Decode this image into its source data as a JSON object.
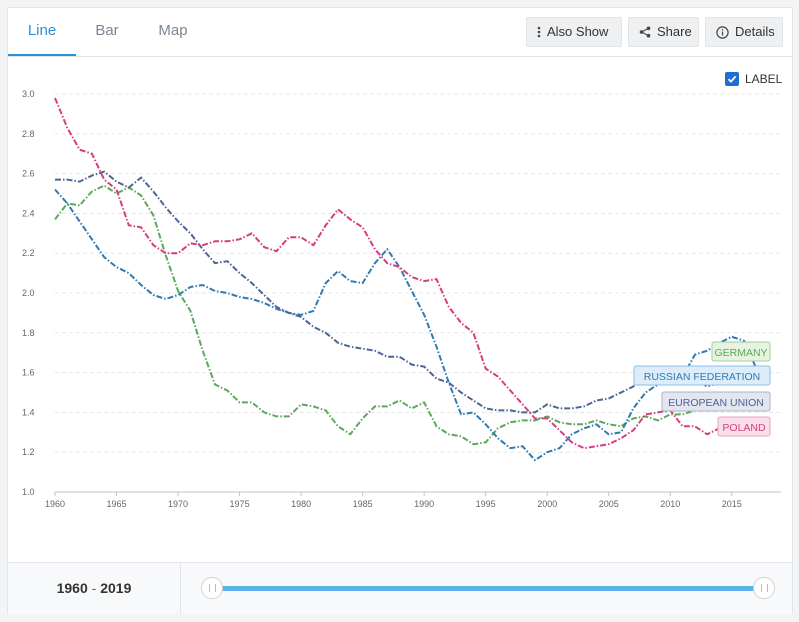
{
  "tabs": [
    {
      "label": "Line",
      "active": true
    },
    {
      "label": "Bar",
      "active": false
    },
    {
      "label": "Map",
      "active": false
    }
  ],
  "toolbar": {
    "also_show": "Also Show",
    "share": "Share",
    "details": "Details"
  },
  "label_toggle": {
    "label": "LABEL",
    "checked": true
  },
  "range": {
    "start": "1960",
    "separator": "-",
    "end": "2019"
  },
  "colors": {
    "accent": "#2a8fd8",
    "slider": "#5cb3ea"
  },
  "chart_data": {
    "type": "line",
    "title": "",
    "xlabel": "",
    "ylabel": "",
    "xlim": [
      1960,
      2019
    ],
    "ylim": [
      1.0,
      3.0
    ],
    "x_ticks": [
      1960,
      1965,
      1970,
      1975,
      1980,
      1985,
      1990,
      1995,
      2000,
      2005,
      2010,
      2015
    ],
    "y_ticks": [
      "1.0",
      "1.2",
      "1.4",
      "1.6",
      "1.8",
      "2.0",
      "2.2",
      "2.4",
      "2.6",
      "2.8",
      "3.0"
    ],
    "grid": true,
    "line_style": "dash-dot",
    "series": [
      {
        "name": "GERMANY",
        "color": "#5aa95a",
        "label_bg": "#e6f3e1",
        "label_border": "#9fd19a",
        "x": [
          1960,
          1961,
          1962,
          1963,
          1964,
          1965,
          1966,
          1967,
          1968,
          1969,
          1970,
          1971,
          1972,
          1973,
          1974,
          1975,
          1976,
          1977,
          1978,
          1979,
          1980,
          1981,
          1982,
          1983,
          1984,
          1985,
          1986,
          1987,
          1988,
          1989,
          1990,
          1991,
          1992,
          1993,
          1994,
          1995,
          1996,
          1997,
          1998,
          1999,
          2000,
          2001,
          2002,
          2003,
          2004,
          2005,
          2006,
          2007,
          2008,
          2009,
          2010,
          2011,
          2012,
          2013,
          2014,
          2015
        ],
        "y": [
          2.37,
          2.45,
          2.44,
          2.51,
          2.54,
          2.5,
          2.53,
          2.49,
          2.39,
          2.19,
          2.01,
          1.91,
          1.71,
          1.54,
          1.51,
          1.45,
          1.45,
          1.4,
          1.38,
          1.38,
          1.44,
          1.43,
          1.41,
          1.33,
          1.29,
          1.37,
          1.43,
          1.43,
          1.46,
          1.42,
          1.45,
          1.33,
          1.29,
          1.28,
          1.24,
          1.25,
          1.32,
          1.35,
          1.36,
          1.36,
          1.38,
          1.35,
          1.34,
          1.34,
          1.36,
          1.34,
          1.33,
          1.37,
          1.38,
          1.36,
          1.39,
          1.39,
          1.41,
          1.42,
          1.47,
          1.5
        ]
      },
      {
        "name": "RUSSIAN FEDERATION",
        "color": "#2f7bb2",
        "label_bg": "#dcedf9",
        "label_border": "#8dc0e6",
        "x": [
          1960,
          1961,
          1962,
          1963,
          1964,
          1965,
          1966,
          1967,
          1968,
          1969,
          1970,
          1971,
          1972,
          1973,
          1974,
          1975,
          1976,
          1977,
          1978,
          1979,
          1980,
          1981,
          1982,
          1983,
          1984,
          1985,
          1986,
          1987,
          1988,
          1989,
          1990,
          1991,
          1992,
          1993,
          1994,
          1995,
          1996,
          1997,
          1998,
          1999,
          2000,
          2001,
          2002,
          2003,
          2004,
          2005,
          2006,
          2007,
          2008,
          2009,
          2010,
          2011,
          2012,
          2013,
          2014,
          2015,
          2016,
          2017
        ],
        "y": [
          2.52,
          2.45,
          2.36,
          2.27,
          2.18,
          2.13,
          2.1,
          2.04,
          1.99,
          1.97,
          1.99,
          2.03,
          2.04,
          2.01,
          2.0,
          1.98,
          1.97,
          1.95,
          1.92,
          1.9,
          1.89,
          1.91,
          2.05,
          2.11,
          2.06,
          2.05,
          2.15,
          2.22,
          2.13,
          2.01,
          1.89,
          1.73,
          1.55,
          1.39,
          1.4,
          1.34,
          1.27,
          1.22,
          1.23,
          1.16,
          1.2,
          1.22,
          1.29,
          1.32,
          1.34,
          1.29,
          1.3,
          1.42,
          1.5,
          1.54,
          1.57,
          1.58,
          1.69,
          1.71,
          1.75,
          1.78,
          1.76,
          1.62
        ]
      },
      {
        "name": "EUROPEAN UNION",
        "color": "#4e6595",
        "label_bg": "#e3e6ee",
        "label_border": "#a9b3c9",
        "x": [
          1960,
          1961,
          1962,
          1963,
          1964,
          1965,
          1966,
          1967,
          1968,
          1969,
          1970,
          1971,
          1972,
          1973,
          1974,
          1975,
          1976,
          1977,
          1978,
          1979,
          1980,
          1981,
          1982,
          1983,
          1984,
          1985,
          1986,
          1987,
          1988,
          1989,
          1990,
          1991,
          1992,
          1993,
          1994,
          1995,
          1996,
          1997,
          1998,
          1999,
          2000,
          2001,
          2002,
          2003,
          2004,
          2005,
          2006,
          2007,
          2008,
          2009,
          2010,
          2011,
          2012,
          2013,
          2014,
          2015
        ],
        "y": [
          2.57,
          2.57,
          2.56,
          2.59,
          2.61,
          2.56,
          2.53,
          2.58,
          2.51,
          2.43,
          2.36,
          2.3,
          2.22,
          2.15,
          2.16,
          2.1,
          2.05,
          1.99,
          1.93,
          1.9,
          1.88,
          1.83,
          1.8,
          1.75,
          1.73,
          1.72,
          1.71,
          1.68,
          1.68,
          1.64,
          1.63,
          1.57,
          1.55,
          1.5,
          1.46,
          1.42,
          1.41,
          1.41,
          1.4,
          1.4,
          1.44,
          1.42,
          1.42,
          1.43,
          1.46,
          1.47,
          1.5,
          1.53,
          1.58,
          1.58,
          1.61,
          1.58,
          1.57,
          1.53,
          1.55,
          1.56
        ]
      },
      {
        "name": "POLAND",
        "color": "#d63d7f",
        "label_bg": "#f9dfea",
        "label_border": "#eba2c2",
        "x": [
          1960,
          1961,
          1962,
          1963,
          1964,
          1965,
          1966,
          1967,
          1968,
          1969,
          1970,
          1971,
          1972,
          1973,
          1974,
          1975,
          1976,
          1977,
          1978,
          1979,
          1980,
          1981,
          1982,
          1983,
          1984,
          1985,
          1986,
          1987,
          1988,
          1989,
          1990,
          1991,
          1992,
          1993,
          1994,
          1995,
          1996,
          1997,
          1998,
          1999,
          2000,
          2001,
          2002,
          2003,
          2004,
          2005,
          2006,
          2007,
          2008,
          2009,
          2010,
          2011,
          2012,
          2013,
          2014,
          2015
        ],
        "y": [
          2.98,
          2.83,
          2.72,
          2.7,
          2.57,
          2.52,
          2.34,
          2.33,
          2.24,
          2.2,
          2.2,
          2.25,
          2.24,
          2.26,
          2.26,
          2.27,
          2.3,
          2.23,
          2.21,
          2.28,
          2.28,
          2.24,
          2.34,
          2.42,
          2.37,
          2.33,
          2.22,
          2.15,
          2.13,
          2.08,
          2.06,
          2.07,
          1.93,
          1.85,
          1.8,
          1.62,
          1.58,
          1.51,
          1.44,
          1.37,
          1.37,
          1.31,
          1.25,
          1.22,
          1.23,
          1.24,
          1.27,
          1.31,
          1.39,
          1.4,
          1.41,
          1.33,
          1.33,
          1.29,
          1.32,
          1.32
        ]
      }
    ]
  }
}
